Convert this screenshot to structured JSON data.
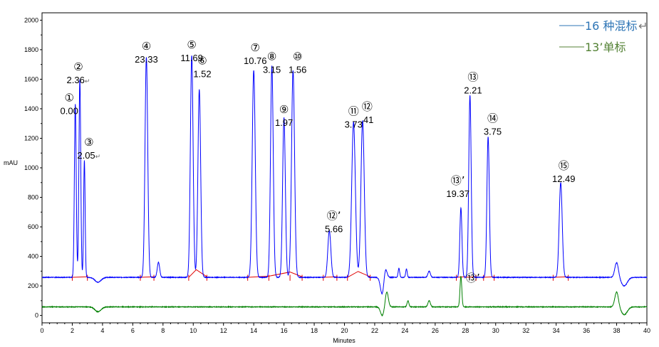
{
  "chart_data": {
    "type": "line",
    "xlabel": "Minutes",
    "ylabel": "mAU",
    "xlim": [
      0,
      40
    ],
    "ylim": [
      -50,
      2050
    ],
    "x_ticks": [
      0,
      2,
      4,
      6,
      8,
      10,
      12,
      14,
      16,
      18,
      20,
      22,
      24,
      26,
      28,
      30,
      32,
      34,
      36,
      38,
      40
    ],
    "y_ticks": [
      0,
      200,
      400,
      600,
      800,
      1000,
      1200,
      1400,
      1600,
      1800,
      2000
    ],
    "legend": {
      "placement": "top-right",
      "items": [
        {
          "label": "16 种混标",
          "mark": "↵",
          "color": "#2e75b6"
        },
        {
          "label": "13’单标",
          "mark": "",
          "color": "#548235"
        }
      ]
    },
    "series": [
      {
        "name": "16 种混标",
        "color": "#0000ff",
        "baseline": 258,
        "peaks": [
          {
            "x": 2.2,
            "y": 1430,
            "w": 0.06
          },
          {
            "x": 2.5,
            "y": 1600,
            "w": 0.06
          },
          {
            "x": 2.8,
            "y": 1050,
            "w": 0.05
          },
          {
            "x": 6.9,
            "y": 1750,
            "w": 0.09
          },
          {
            "x": 7.7,
            "y": 360,
            "w": 0.08
          },
          {
            "x": 9.9,
            "y": 1760,
            "w": 0.09
          },
          {
            "x": 10.4,
            "y": 1530,
            "w": 0.09
          },
          {
            "x": 14.0,
            "y": 1660,
            "w": 0.1
          },
          {
            "x": 15.2,
            "y": 1690,
            "w": 0.09
          },
          {
            "x": 16.0,
            "y": 1340,
            "w": 0.09
          },
          {
            "x": 16.6,
            "y": 1660,
            "w": 0.1
          },
          {
            "x": 19.0,
            "y": 575,
            "w": 0.1
          },
          {
            "x": 20.6,
            "y": 1310,
            "w": 0.12
          },
          {
            "x": 21.2,
            "y": 1320,
            "w": 0.11
          },
          {
            "x": 22.7,
            "y": 330,
            "w": 0.1
          },
          {
            "x": 23.6,
            "y": 320,
            "w": 0.05
          },
          {
            "x": 24.1,
            "y": 315,
            "w": 0.05
          },
          {
            "x": 25.6,
            "y": 300,
            "w": 0.08
          },
          {
            "x": 27.7,
            "y": 730,
            "w": 0.07
          },
          {
            "x": 28.3,
            "y": 1490,
            "w": 0.08
          },
          {
            "x": 29.5,
            "y": 1210,
            "w": 0.08
          },
          {
            "x": 34.3,
            "y": 900,
            "w": 0.1
          },
          {
            "x": 38.0,
            "y": 360,
            "w": 0.12
          }
        ],
        "dips": [
          {
            "x": 3.7,
            "y": 225,
            "w": 0.2
          },
          {
            "x": 22.5,
            "y": 140,
            "w": 0.12
          },
          {
            "x": 38.5,
            "y": 200,
            "w": 0.2
          }
        ]
      },
      {
        "name": "13’单标",
        "color": "#008000",
        "baseline": 58,
        "peaks": [
          {
            "x": 22.8,
            "y": 160,
            "w": 0.1
          },
          {
            "x": 24.2,
            "y": 100,
            "w": 0.06
          },
          {
            "x": 25.6,
            "y": 100,
            "w": 0.08
          },
          {
            "x": 27.7,
            "y": 265,
            "w": 0.06
          },
          {
            "x": 38.0,
            "y": 160,
            "w": 0.12
          }
        ],
        "dips": [
          {
            "x": 3.7,
            "y": 25,
            "w": 0.2
          },
          {
            "x": 22.5,
            "y": 0,
            "w": 0.12
          },
          {
            "x": 38.5,
            "y": 5,
            "w": 0.2
          }
        ]
      }
    ],
    "annotations": [
      {
        "mark": "①",
        "value": "0.00",
        "x": 1.8,
        "y": 1450
      },
      {
        "mark": "②",
        "value": "2.36",
        "suffix": "↵",
        "x": 2.4,
        "y": 1660
      },
      {
        "mark": "③",
        "value": "2.05",
        "suffix": "↵",
        "x": 3.1,
        "y": 1150
      },
      {
        "mark": "④",
        "value": "23.33",
        "x": 6.9,
        "y": 1800
      },
      {
        "mark": "⑤",
        "value": "11.69",
        "x": 9.9,
        "y": 1810
      },
      {
        "mark": "⑥",
        "value": "1.52",
        "x": 10.6,
        "y": 1700
      },
      {
        "mark": "⑦",
        "value": "10.76",
        "x": 14.1,
        "y": 1790
      },
      {
        "mark": "⑧",
        "value": "3.15",
        "x": 15.2,
        "y": 1730
      },
      {
        "mark": "⑨",
        "value": "1.97",
        "x": 16.0,
        "y": 1370
      },
      {
        "mark": "⑩",
        "value": "1.56",
        "x": 16.9,
        "y": 1730
      },
      {
        "mark": "⑫’",
        "value": "5.66",
        "x": 19.3,
        "y": 650
      },
      {
        "mark": "⑪",
        "value": "3.73",
        "x": 20.6,
        "y": 1360
      },
      {
        "mark": "⑫",
        "value": ".41",
        "x": 21.5,
        "y": 1390
      },
      {
        "mark": "⑬’",
        "value": "19.37",
        "x": 27.5,
        "y": 890
      },
      {
        "mark": "⑬",
        "value": "2.21",
        "x": 28.5,
        "y": 1590
      },
      {
        "mark": "⑭",
        "value": "3.75",
        "x": 29.8,
        "y": 1310
      },
      {
        "mark": "⑮",
        "value": "12.49",
        "x": 34.5,
        "y": 990
      },
      {
        "mark": "⑬’",
        "value": "",
        "x": 28.5,
        "y": 230
      }
    ],
    "integration_baseline_color": "#e00000",
    "integration_segments": [
      [
        2.0,
        258,
        3.0,
        262
      ],
      [
        6.5,
        258,
        7.4,
        262
      ],
      [
        9.7,
        258,
        10.2,
        310,
        10.9,
        262
      ],
      [
        13.6,
        258,
        15.0,
        266,
        16.4,
        294,
        17.2,
        262
      ],
      [
        18.6,
        258,
        19.5,
        262
      ],
      [
        20.2,
        258,
        20.9,
        298,
        21.7,
        262
      ],
      [
        27.4,
        258,
        28.0,
        262
      ],
      [
        28.0,
        258,
        28.7,
        262
      ],
      [
        29.2,
        258,
        29.9,
        262
      ],
      [
        33.8,
        258,
        34.8,
        262
      ]
    ],
    "integration_ticks": [
      2.0,
      3.0,
      6.5,
      7.4,
      9.7,
      10.9,
      13.6,
      15.0,
      16.4,
      17.2,
      18.6,
      19.5,
      20.2,
      21.7,
      27.4,
      28.7,
      29.2,
      29.9,
      33.8,
      34.8
    ]
  }
}
